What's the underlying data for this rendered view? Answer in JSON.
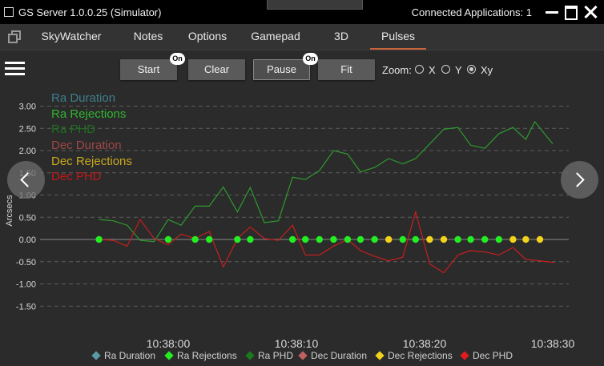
{
  "window": {
    "title": "GS Server 1.0.0.25 (Simulator)",
    "connected_applications": "Connected Applications: 1"
  },
  "tabs": [
    {
      "label": "SkyWatcher",
      "active": false
    },
    {
      "label": "Notes",
      "active": false
    },
    {
      "label": "Options",
      "active": false
    },
    {
      "label": "Gamepad",
      "active": false
    },
    {
      "label": "3D",
      "active": false
    },
    {
      "label": "Pulses",
      "active": true
    }
  ],
  "toolbar": {
    "start_label": "Start",
    "start_badge": "On",
    "clear_label": "Clear",
    "pause_label": "Pause",
    "pause_badge": "On",
    "fit_label": "Fit",
    "zoom_label": "Zoom:",
    "zoom_options": [
      {
        "label": "X",
        "selected": false
      },
      {
        "label": "Y",
        "selected": false
      },
      {
        "label": "Xy",
        "selected": true
      }
    ]
  },
  "icons": {
    "dock": "dock-icon",
    "menu": "hamburger-menu-icon",
    "prev": "chevron-left-icon",
    "next": "chevron-right-icon",
    "minimize": "minimize-icon",
    "maximize": "maximize-icon",
    "close": "close-icon"
  },
  "chart_data": {
    "type": "line",
    "ylabel": "Arcsecs",
    "xlabel": "",
    "ylim": [
      -1.5,
      3.0
    ],
    "yticks": [
      "3.00",
      "2.50",
      "2.00",
      "1.50",
      "1.00",
      "0.50",
      "0.00",
      "-0.50",
      "-1.00",
      "-1.50"
    ],
    "xticks": [
      {
        "label": "10:38:00",
        "t": 0
      },
      {
        "label": "10:38:10",
        "t": 10
      },
      {
        "label": "10:38:20",
        "t": 20
      },
      {
        "label": "10:38:30",
        "t": 30
      }
    ],
    "grid": "horizontal dashed",
    "legend_top": [
      {
        "name": "Ra Duration",
        "color": "#3f7f8c"
      },
      {
        "name": "Ra Rejections",
        "color": "#2fb52f"
      },
      {
        "name": "Ra PHD",
        "color": "#1f6e1f"
      },
      {
        "name": "Dec Duration",
        "color": "#a04646"
      },
      {
        "name": "Dec Rejections",
        "color": "#c8a91e"
      },
      {
        "name": "Dec PHD",
        "color": "#c01818"
      }
    ],
    "legend_bottom": [
      {
        "name": "Ra Duration",
        "color": "#5a9aa4"
      },
      {
        "name": "Ra Rejections",
        "color": "#22ee22"
      },
      {
        "name": "Ra PHD",
        "color": "#1a7a1a"
      },
      {
        "name": "Dec Duration",
        "color": "#c06060"
      },
      {
        "name": "Dec Rejections",
        "color": "#f2d21a"
      },
      {
        "name": "Dec PHD",
        "color": "#e01c1c"
      }
    ],
    "series": [
      {
        "name": "Ra PHD",
        "color": "#2e9a2e",
        "x": [
          -5.4,
          -4.3,
          -3.2,
          -2.2,
          -1.1,
          0.0,
          1.0,
          2.1,
          3.2,
          4.3,
          5.4,
          6.4,
          7.5,
          8.6,
          9.7,
          10.7,
          11.8,
          12.9,
          14.0,
          15.0,
          16.1,
          17.2,
          18.3,
          19.3,
          20.4,
          21.5,
          22.6,
          23.6,
          24.7,
          25.8,
          26.9,
          27.9
        ],
        "y": [
          0.45,
          0.42,
          0.32,
          -0.02,
          -0.05,
          0.45,
          0.32,
          0.75,
          0.75,
          1.18,
          0.62,
          1.17,
          0.38,
          0.42,
          1.4,
          1.35,
          1.55,
          2.0,
          1.92,
          1.52,
          1.62,
          1.82,
          1.7,
          1.82,
          2.15,
          2.48,
          2.52,
          2.12,
          2.05,
          2.38,
          2.52,
          2.25
        ]
      },
      {
        "name": "Dec PHD",
        "color": "#c81e1e",
        "x": [
          -5.4,
          -4.3,
          -3.2,
          -2.2,
          -1.1,
          0.0,
          1.0,
          2.1,
          3.2,
          4.3,
          5.4,
          6.4,
          7.5,
          8.6,
          9.7,
          10.7,
          11.8,
          12.9,
          14.0,
          15.0,
          16.1,
          17.2,
          18.3,
          19.3,
          20.4,
          21.5,
          22.6,
          23.6,
          24.7,
          25.8,
          26.9,
          27.9,
          29.0,
          30.1
        ],
        "y": [
          0.0,
          -0.02,
          -0.15,
          0.45,
          0.02,
          -0.12,
          0.12,
          0.02,
          0.18,
          -0.62,
          0.02,
          0.28,
          0.02,
          -0.02,
          0.32,
          -0.35,
          -0.35,
          -0.15,
          0.0,
          -0.25,
          -0.38,
          -0.48,
          -0.4,
          0.62,
          -0.55,
          -0.75,
          -0.35,
          -0.25,
          -0.28,
          -0.35,
          -0.18,
          -0.45,
          -0.48,
          -0.52
        ]
      }
    ],
    "ra_phd_tail": [
      {
        "x": 28.6,
        "y": 2.65
      },
      {
        "x": 30.0,
        "y": 2.15
      }
    ],
    "markers": [
      {
        "x": -5.4,
        "y": 0,
        "series": "Ra Rejections"
      },
      {
        "x": 0.0,
        "y": 0,
        "series": "Ra Rejections"
      },
      {
        "x": 2.1,
        "y": 0,
        "series": "Ra Rejections"
      },
      {
        "x": 3.2,
        "y": 0,
        "series": "Ra Rejections"
      },
      {
        "x": 5.4,
        "y": 0,
        "series": "Ra Rejections"
      },
      {
        "x": 6.4,
        "y": 0,
        "series": "Ra Rejections"
      },
      {
        "x": 9.7,
        "y": 0,
        "series": "Ra Rejections"
      },
      {
        "x": 10.7,
        "y": 0,
        "series": "Ra Rejections"
      },
      {
        "x": 11.8,
        "y": 0,
        "series": "Ra Rejections"
      },
      {
        "x": 12.9,
        "y": 0,
        "series": "Ra Rejections"
      },
      {
        "x": 14.0,
        "y": 0,
        "series": "Ra Rejections"
      },
      {
        "x": 15.0,
        "y": 0,
        "series": "Ra Rejections"
      },
      {
        "x": 16.1,
        "y": 0,
        "series": "Ra Rejections"
      },
      {
        "x": 17.2,
        "y": 0,
        "series": "Dec Rejections"
      },
      {
        "x": 18.3,
        "y": 0,
        "series": "Ra Rejections"
      },
      {
        "x": 19.3,
        "y": 0,
        "series": "Ra Rejections"
      },
      {
        "x": 20.4,
        "y": 0,
        "series": "Dec Rejections"
      },
      {
        "x": 21.5,
        "y": 0,
        "series": "Dec Rejections"
      },
      {
        "x": 22.6,
        "y": 0,
        "series": "Ra Rejections"
      },
      {
        "x": 23.6,
        "y": 0,
        "series": "Ra Rejections"
      },
      {
        "x": 24.7,
        "y": 0,
        "series": "Ra Rejections"
      },
      {
        "x": 25.8,
        "y": 0,
        "series": "Ra Rejections"
      },
      {
        "x": 26.9,
        "y": 0,
        "series": "Dec Rejections"
      },
      {
        "x": 27.9,
        "y": 0,
        "series": "Dec Rejections"
      },
      {
        "x": 29.0,
        "y": 0,
        "series": "Dec Rejections"
      }
    ],
    "marker_colors": {
      "Ra Rejections": "#22ee22",
      "Dec Rejections": "#f2d21a"
    }
  }
}
